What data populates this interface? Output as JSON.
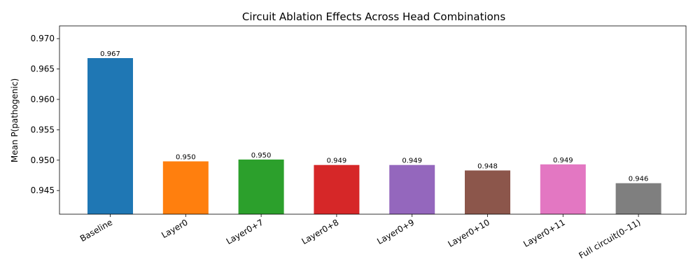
{
  "chart_data": {
    "type": "bar",
    "title": "Circuit Ablation Effects Across Head Combinations",
    "xlabel": "",
    "ylabel": "Mean P(pathogenic)",
    "ylim": [
      0.9411,
      0.9721
    ],
    "yticks": [
      0.945,
      0.95,
      0.955,
      0.96,
      0.965,
      0.97
    ],
    "ytick_labels": [
      "0.945",
      "0.950",
      "0.955",
      "0.960",
      "0.965",
      "0.970"
    ],
    "grid": false,
    "legend": "none",
    "categories": [
      "Baseline",
      "Layer0",
      "Layer0+7",
      "Layer0+8",
      "Layer0+9",
      "Layer0+10",
      "Layer0+11",
      "Full circuit(0–11)"
    ],
    "values": [
      0.9668,
      0.9498,
      0.9501,
      0.9492,
      0.9492,
      0.9483,
      0.9493,
      0.9462
    ],
    "value_labels": [
      "0.967",
      "0.950",
      "0.950",
      "0.949",
      "0.949",
      "0.948",
      "0.949",
      "0.946"
    ],
    "colors": [
      "#1f77b4",
      "#ff7f0e",
      "#2ca02c",
      "#d62728",
      "#9467bd",
      "#8c564b",
      "#e377c2",
      "#7f7f7f"
    ]
  }
}
